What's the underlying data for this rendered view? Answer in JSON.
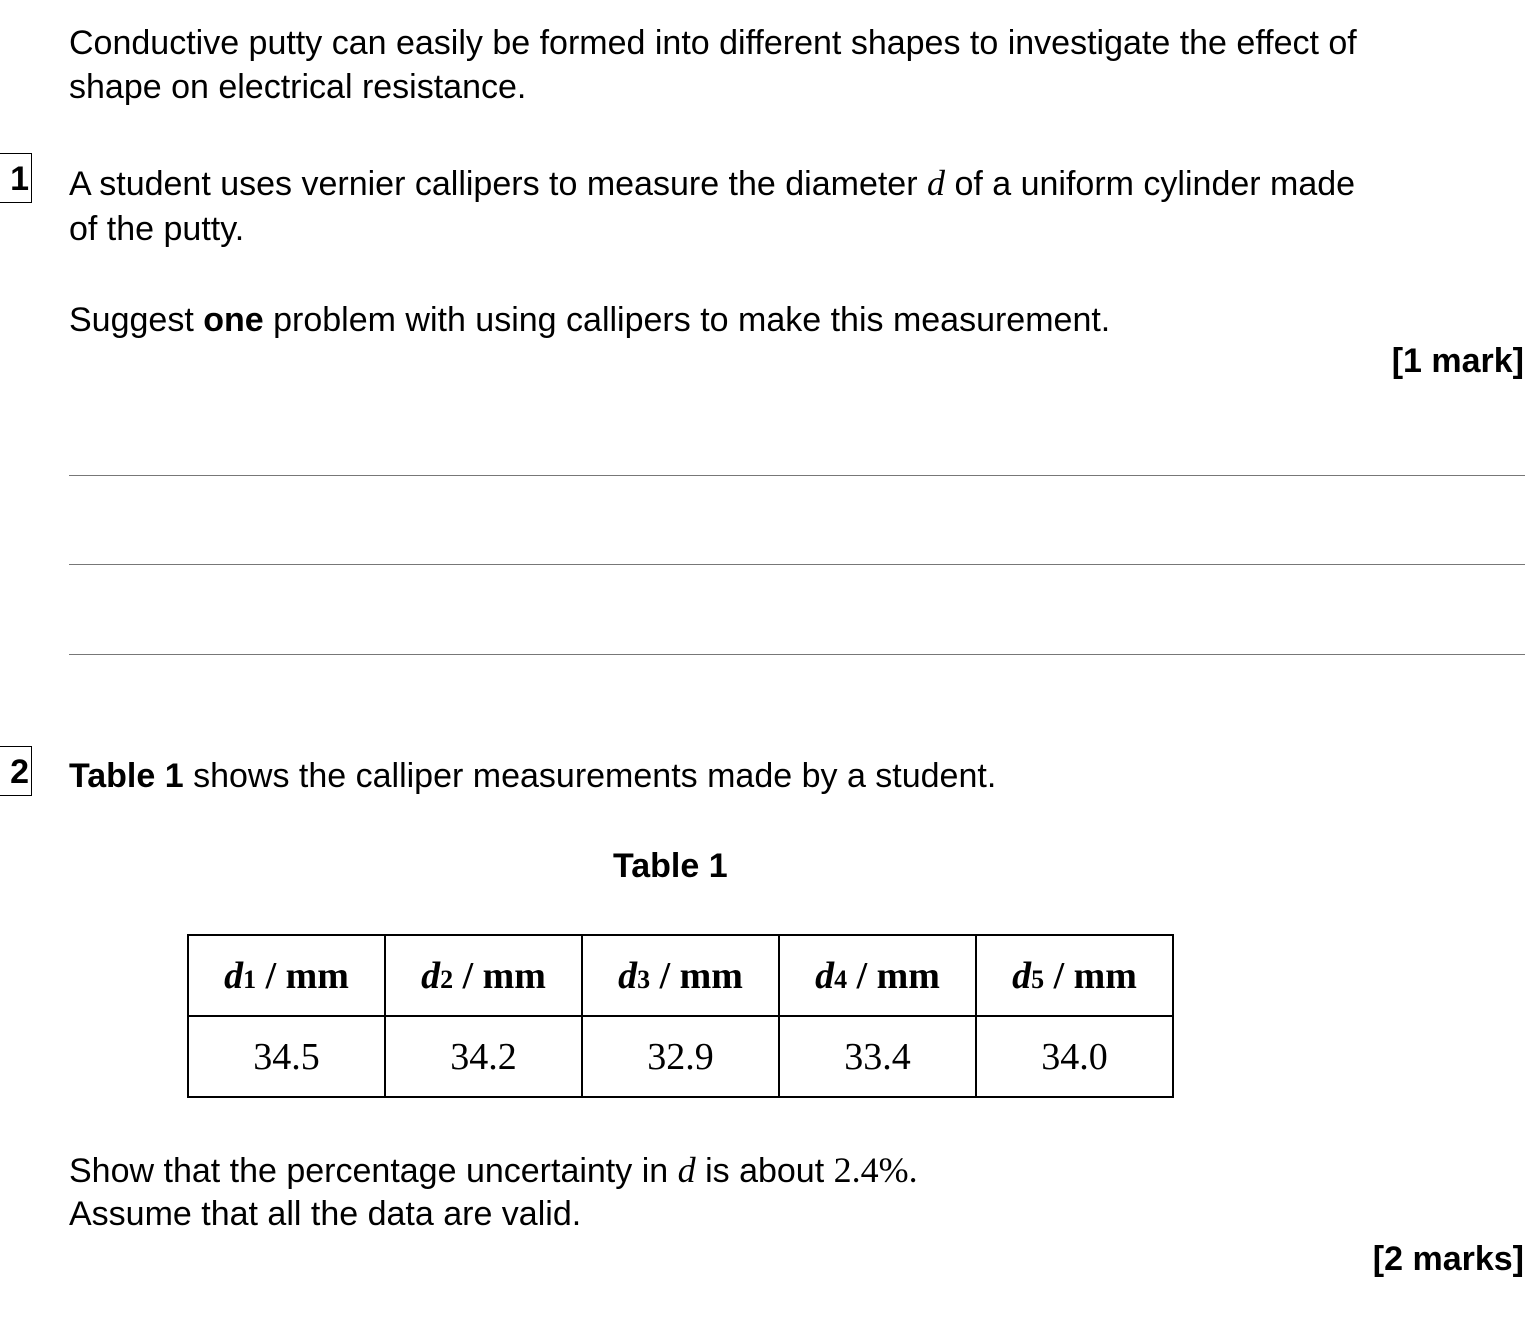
{
  "intro": [
    "Conductive putty can easily be formed into different shapes to investigate the effect of",
    "shape on electrical resistance."
  ],
  "q1": {
    "number": "1",
    "line1_pre": "A student uses vernier callipers to measure the diameter ",
    "var": "d",
    "line1_post": " of a uniform cylinder made",
    "line2": "of the putty.",
    "prompt_pre": "Suggest ",
    "prompt_bold": "one",
    "prompt_post": " problem with using callipers to make this measurement.",
    "marks": "[1 mark]"
  },
  "q2": {
    "number": "2",
    "intro_bold": "Table 1",
    "intro_rest": " shows the calliper measurements made by a student.",
    "table_title": "Table 1",
    "table": {
      "headers": [
        {
          "var": "d",
          "sub": "1",
          "unit": " / mm"
        },
        {
          "var": "d",
          "sub": "2",
          "unit": " / mm"
        },
        {
          "var": "d",
          "sub": "3",
          "unit": " / mm"
        },
        {
          "var": "d",
          "sub": "4",
          "unit": " / mm"
        },
        {
          "var": "d",
          "sub": "5",
          "unit": " / mm"
        }
      ],
      "values": [
        "34.5",
        "34.2",
        "32.9",
        "33.4",
        "34.0"
      ]
    },
    "show_pre": "Show that the percentage uncertainty in ",
    "show_var": "d",
    "show_mid": " is about ",
    "show_value": "2.4%.",
    "assume": "Assume that all the data are valid.",
    "marks": "[2 marks]"
  }
}
